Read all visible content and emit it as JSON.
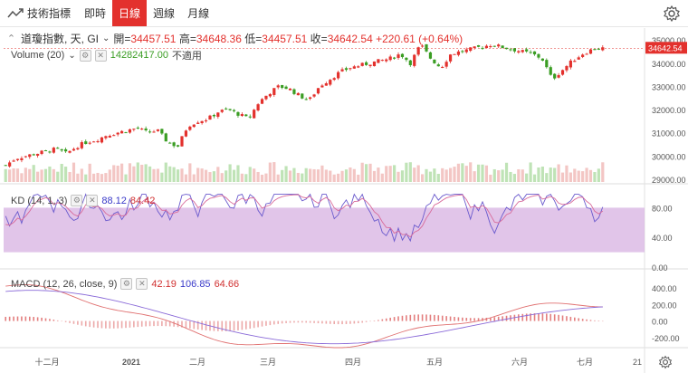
{
  "toolbar": {
    "brand": "技術指標",
    "tabs": [
      {
        "label": "即時"
      },
      {
        "label": "日線"
      },
      {
        "label": "週線"
      },
      {
        "label": "月線"
      }
    ],
    "active_tab": "日線"
  },
  "header": {
    "symbol": "道瓊指數, 天, GI",
    "open_label": "開=",
    "open": "34457.51",
    "high_label": "高=",
    "high": "34648.36",
    "low_label": "低=",
    "low": "34457.51",
    "close_label": "收=",
    "close": "34642.54",
    "change": "+220.61 (+0.64%)"
  },
  "volume_legend": {
    "label": "Volume (20)",
    "value": "14282417.00",
    "na": "不適用"
  },
  "kd_legend": {
    "label": "KD (14, 1, 3)",
    "k": "88.12",
    "d": "84.42"
  },
  "macd_legend": {
    "label": "MACD (12, 26, close, 9)",
    "v1": "42.19",
    "v2": "106.85",
    "v3": "64.66"
  },
  "price_axis": [
    "35000.00",
    "34000.00",
    "33000.00",
    "32000.00",
    "31000.00",
    "30000.00",
    "29000.00"
  ],
  "last_price": "34642.54",
  "kd_axis": [
    "80.00",
    "40.00",
    "0.00"
  ],
  "macd_axis": [
    "400.00",
    "200.00",
    "0.00",
    "-200.00"
  ],
  "x_axis": [
    "十二月",
    "2021",
    "二月",
    "三月",
    "四月",
    "五月",
    "六月",
    "七月",
    "21"
  ],
  "colors": {
    "up": "#e3312d",
    "down": "#3a9d23",
    "kd_band": "#d9b6e3",
    "macd_line": "#e07070",
    "signal_line": "#8a6ad8"
  },
  "chart_data": {
    "type": "candlestick",
    "close_series_approx": [
      29600,
      29900,
      30000,
      30100,
      30200,
      30300,
      30100,
      30400,
      30600,
      30700,
      30900,
      31000,
      31100,
      31200,
      31000,
      31100,
      30600,
      30400,
      31300,
      31500,
      31600,
      31900,
      32000,
      31800,
      31600,
      32300,
      32700,
      33000,
      32900,
      32600,
      32400,
      33000,
      33300,
      33600,
      33800,
      33900,
      34000,
      34100,
      34200,
      34400,
      34000,
      34800,
      34200,
      33800,
      34400,
      34500,
      34600,
      34700,
      34800,
      34700,
      34600,
      34500,
      34400,
      34200,
      33300,
      33700,
      34100,
      34400,
      34600,
      34642.54
    ],
    "last_close": 34642.54,
    "ylim": [
      28800,
      35200
    ]
  }
}
